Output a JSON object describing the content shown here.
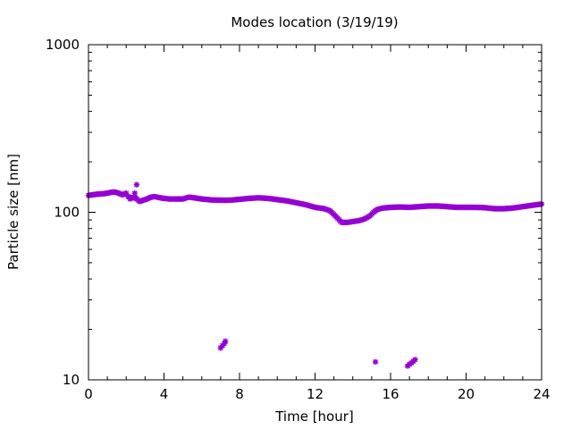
{
  "chart_data": {
    "type": "scatter",
    "title": "Modes location (3/19/19)",
    "xlabel": "Time [hour]",
    "ylabel": "Particle size [nm]",
    "xlim": [
      0,
      24
    ],
    "ylim": [
      10,
      1000
    ],
    "yscale": "log",
    "grid": false,
    "legend": "none",
    "xticks": [
      0,
      4,
      8,
      12,
      16,
      20,
      24
    ],
    "xtick_labels": [
      "0",
      "4",
      "8",
      "12",
      "16",
      "20",
      "24"
    ],
    "yticks": [
      10,
      100,
      1000
    ],
    "ytick_labels": [
      "10",
      "100",
      "1000"
    ],
    "marker_color": "#9400d3",
    "marker": "star",
    "main_mode": [
      [
        0.0,
        126
      ],
      [
        0.2,
        127
      ],
      [
        0.4,
        128
      ],
      [
        0.6,
        128.5
      ],
      [
        0.8,
        129
      ],
      [
        1.0,
        130
      ],
      [
        1.2,
        131.5
      ],
      [
        1.4,
        132
      ],
      [
        1.6,
        130
      ],
      [
        1.8,
        127
      ],
      [
        2.0,
        130
      ],
      [
        2.1,
        124
      ],
      [
        2.3,
        122
      ],
      [
        2.5,
        122
      ],
      [
        2.7,
        116
      ],
      [
        2.9,
        118
      ],
      [
        3.1,
        120
      ],
      [
        3.3,
        123
      ],
      [
        3.5,
        124
      ],
      [
        3.8,
        122
      ],
      [
        4.0,
        121
      ],
      [
        4.3,
        120
      ],
      [
        4.6,
        120
      ],
      [
        5.0,
        120
      ],
      [
        5.3,
        123
      ],
      [
        5.6,
        122
      ],
      [
        6.0,
        120
      ],
      [
        6.5,
        118.5
      ],
      [
        7.0,
        118
      ],
      [
        7.5,
        118
      ],
      [
        8.0,
        119.5
      ],
      [
        8.5,
        121
      ],
      [
        9.0,
        122
      ],
      [
        9.5,
        121
      ],
      [
        10.0,
        119
      ],
      [
        10.5,
        117
      ],
      [
        11.0,
        114
      ],
      [
        11.5,
        111
      ],
      [
        12.0,
        107
      ],
      [
        12.5,
        105
      ],
      [
        12.8,
        102
      ],
      [
        13.0,
        97
      ],
      [
        13.2,
        92
      ],
      [
        13.4,
        87
      ],
      [
        13.7,
        87
      ],
      [
        14.0,
        88
      ],
      [
        14.3,
        89
      ],
      [
        14.6,
        91
      ],
      [
        14.9,
        95
      ],
      [
        15.1,
        100
      ],
      [
        15.3,
        104
      ],
      [
        15.6,
        106
      ],
      [
        16.0,
        107
      ],
      [
        16.5,
        107.5
      ],
      [
        17.0,
        107
      ],
      [
        17.5,
        108
      ],
      [
        18.0,
        109
      ],
      [
        18.5,
        109
      ],
      [
        19.0,
        108
      ],
      [
        19.5,
        107
      ],
      [
        20.0,
        107
      ],
      [
        20.5,
        107
      ],
      [
        21.0,
        106.5
      ],
      [
        21.5,
        105
      ],
      [
        22.0,
        105
      ],
      [
        22.5,
        106
      ],
      [
        23.0,
        108
      ],
      [
        23.5,
        110
      ],
      [
        24.0,
        112
      ]
    ],
    "secondary_modes": [
      [
        2.55,
        146
      ],
      [
        2.45,
        130
      ],
      [
        2.2,
        120
      ],
      [
        7.0,
        15.5
      ],
      [
        7.1,
        16.0
      ],
      [
        7.2,
        16.5
      ],
      [
        7.25,
        17.0
      ],
      [
        15.2,
        12.8
      ],
      [
        16.9,
        12.1
      ],
      [
        17.0,
        12.4
      ],
      [
        17.1,
        12.6
      ],
      [
        17.2,
        12.9
      ],
      [
        17.3,
        13.2
      ]
    ]
  }
}
